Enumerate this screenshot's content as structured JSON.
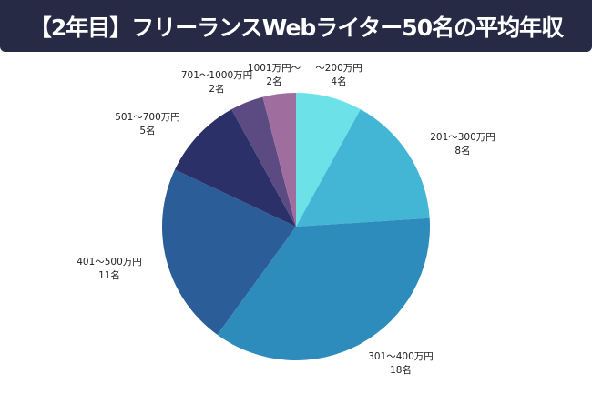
{
  "chart_data": {
    "type": "pie",
    "title": "【2年目】フリーランスWebライター50名の平均年収",
    "unit": "名",
    "slices": [
      {
        "label": "～200万円",
        "value": 4,
        "value_label": "4名",
        "color": "#6ce2e8"
      },
      {
        "label": "201～300万円",
        "value": 8,
        "value_label": "8名",
        "color": "#42b6d4"
      },
      {
        "label": "301～400万円",
        "value": 18,
        "value_label": "18名",
        "color": "#2e8cbc"
      },
      {
        "label": "401～500万円",
        "value": 11,
        "value_label": "11名",
        "color": "#2b5e98"
      },
      {
        "label": "501～700万円",
        "value": 5,
        "value_label": "5名",
        "color": "#2b3068"
      },
      {
        "label": "701～1000万円",
        "value": 2,
        "value_label": "2名",
        "color": "#5c4a82"
      },
      {
        "label": "1001万円～",
        "value": 2,
        "value_label": "2名",
        "color": "#a06e9e"
      }
    ],
    "start_angle": "top",
    "direction": "clockwise",
    "legend": "none"
  }
}
